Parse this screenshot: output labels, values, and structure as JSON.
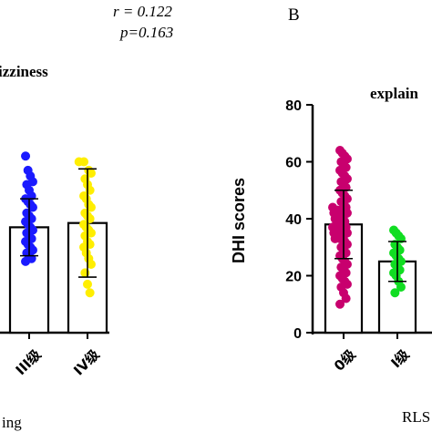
{
  "stats": {
    "r": "r = 0.122",
    "p": "p=0.163"
  },
  "panel_b_label": "B",
  "chart_data": [
    {
      "type": "bar",
      "title": "izziness",
      "xlabel": "ing",
      "ylabel": "",
      "ylim": [
        0,
        80
      ],
      "grid": false,
      "categories": [
        "III级",
        "IV级"
      ],
      "values": [
        37,
        38.5
      ],
      "error_sd": [
        10,
        19
      ],
      "colors": [
        "#1a1aff",
        "#ffee00"
      ],
      "points": [
        [
          62,
          57,
          55,
          53,
          52,
          50,
          48,
          47,
          46,
          45,
          44,
          42,
          41,
          40,
          39,
          38,
          37,
          36,
          35,
          34,
          33,
          32,
          31,
          30,
          29,
          28,
          27,
          26,
          25
        ],
        [
          60,
          60,
          57,
          56,
          54,
          52,
          50,
          48,
          47,
          45,
          44,
          42,
          41,
          40,
          38,
          37,
          36,
          35,
          34,
          32,
          31,
          30,
          28,
          26,
          24,
          21,
          17,
          14
        ]
      ]
    },
    {
      "type": "bar",
      "title": "explain",
      "xlabel": "RLS",
      "ylabel": "DHI scores",
      "ylim": [
        0,
        80
      ],
      "yticks": [
        "0",
        "20",
        "40",
        "60",
        "80"
      ],
      "grid": false,
      "categories": [
        "0级",
        "I级"
      ],
      "values": [
        38,
        25
      ],
      "error_sd": [
        12,
        7
      ],
      "colors": [
        "#c8006e",
        "#11dd22"
      ],
      "points": [
        [
          64,
          63,
          62,
          61,
          60,
          59,
          58,
          57,
          56,
          55,
          54,
          53,
          52,
          51,
          50,
          49,
          48,
          47,
          46,
          45,
          44,
          44,
          43,
          43,
          42,
          42,
          41,
          41,
          40,
          40,
          39,
          39,
          38,
          38,
          37,
          37,
          36,
          36,
          35,
          35,
          34,
          34,
          33,
          33,
          32,
          31,
          30,
          29,
          28,
          27,
          26,
          25,
          24,
          23,
          22,
          21,
          20,
          19,
          18,
          17,
          16,
          14,
          12,
          10
        ],
        [
          36,
          35,
          34,
          33,
          31,
          30,
          29,
          28,
          27,
          26,
          25,
          24,
          23,
          22,
          21,
          20,
          18,
          16,
          14
        ]
      ]
    }
  ]
}
